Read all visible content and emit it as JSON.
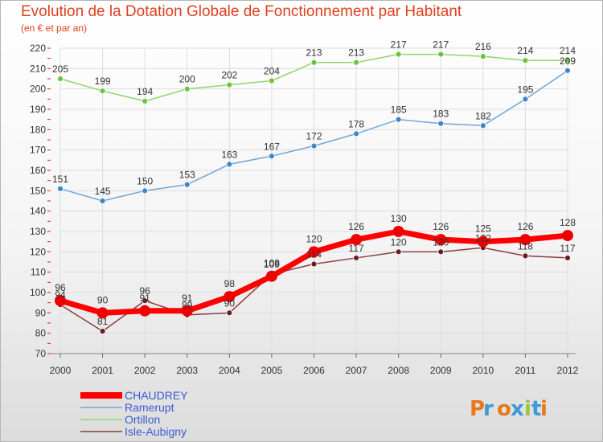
{
  "header": {
    "title": "Evolution de la Dotation Globale de Fonctionnement par Habitant",
    "subtitle": "(en € et par an)"
  },
  "brand": {
    "logo_text": "Proxiti",
    "letter_colors": [
      "#e8791a",
      "#3c9ad6",
      "#e8791a",
      "#3c9ad6",
      "#9cc43c",
      "#3c9ad6",
      "#e8791a"
    ]
  },
  "chart_data": {
    "type": "line",
    "title": "Evolution de la Dotation Globale de Fonctionnement par Habitant",
    "subtitle": "(en € et par an)",
    "x": [
      "2000",
      "2001",
      "2002",
      "2003",
      "2004",
      "2005",
      "2006",
      "2007",
      "2008",
      "2009",
      "2010",
      "2011",
      "2012"
    ],
    "ylim": [
      70,
      220
    ],
    "yticks": [
      70,
      80,
      90,
      100,
      110,
      120,
      130,
      140,
      150,
      160,
      170,
      180,
      190,
      200,
      210,
      220
    ],
    "grid": true,
    "legend_position": "bottom-left",
    "series": [
      {
        "name": "Ortillon",
        "color": "#8fd66a",
        "marker": "#6cc43c",
        "values": [
          205,
          199,
          194,
          200,
          202,
          204,
          213,
          213,
          217,
          217,
          216,
          214,
          214
        ]
      },
      {
        "name": "Ramerupt",
        "color": "#6ea6d8",
        "marker": "#3f86c8",
        "values": [
          151,
          145,
          150,
          153,
          163,
          167,
          172,
          178,
          185,
          183,
          182,
          195,
          209
        ]
      },
      {
        "name": "Isle-Aubigny",
        "color": "#8a4040",
        "marker": "#6a1f1f",
        "values": [
          94,
          81,
          96,
          89,
          90,
          109,
          114,
          117,
          120,
          120,
          122,
          118,
          117
        ]
      },
      {
        "name": "CHAUDREY",
        "color": "#ff0000",
        "marker": "#ee0000",
        "values": [
          96,
          90,
          91,
          91,
          98,
          108,
          120,
          126,
          130,
          126,
          125,
          126,
          128
        ]
      }
    ],
    "legend_order": [
      "CHAUDREY",
      "Ramerupt",
      "Ortillon",
      "Isle-Aubigny"
    ],
    "legend_text_color": "#3a5cd0"
  }
}
